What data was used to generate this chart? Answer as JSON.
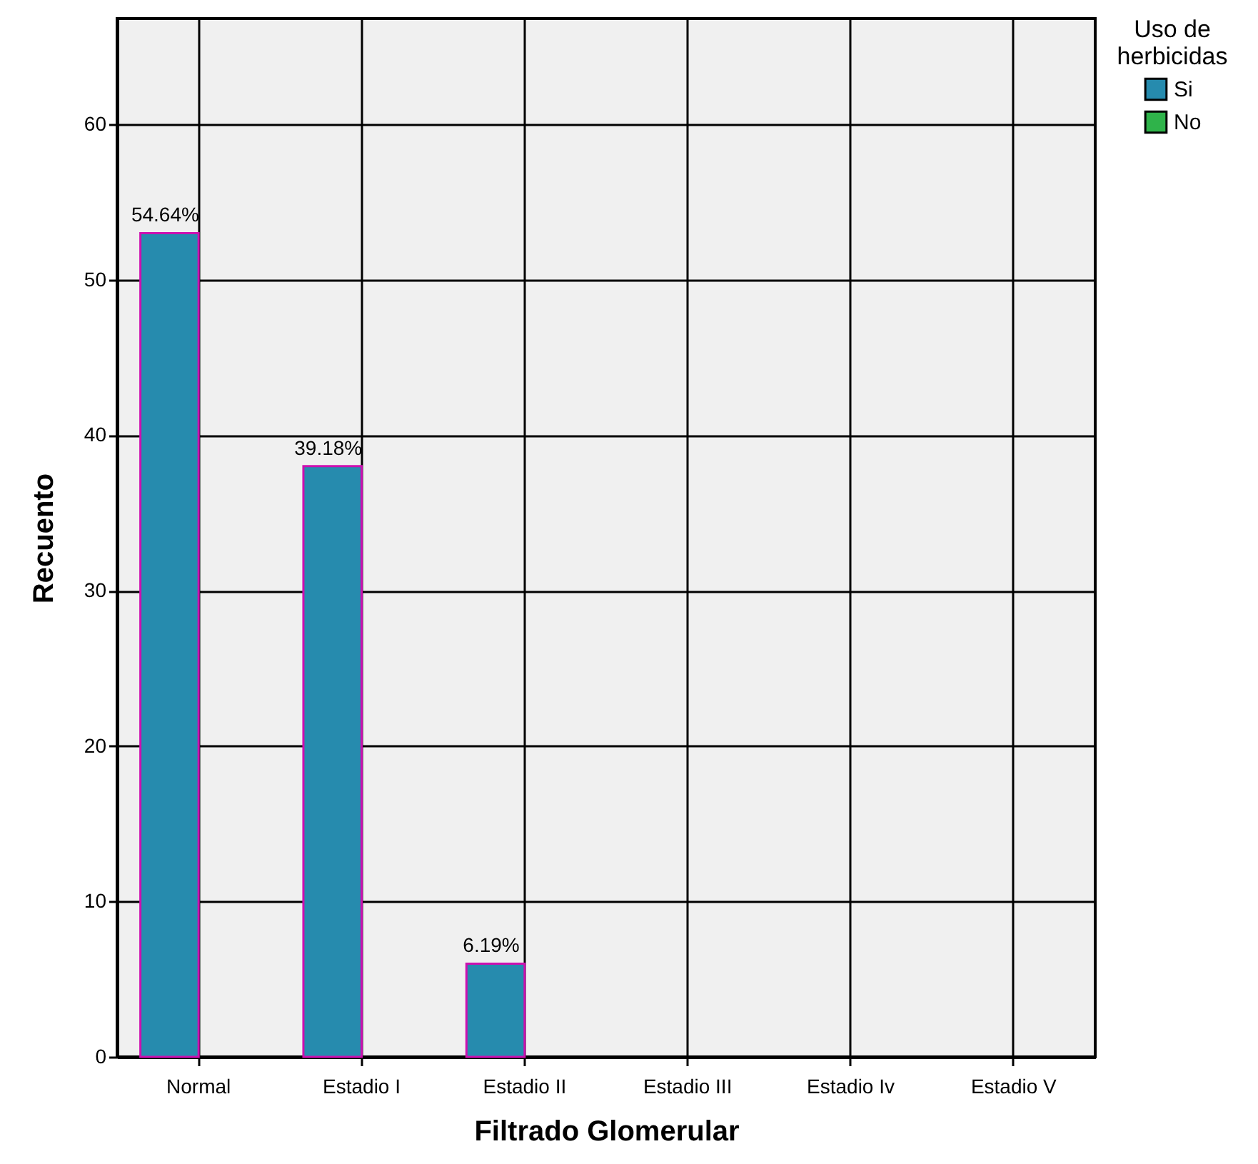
{
  "chart_data": {
    "type": "bar",
    "xlabel": "Filtrado Glomerular",
    "ylabel": "Recuento",
    "legend_title": "Uso de herbicidas",
    "categories": [
      "Normal",
      "Estadio I",
      "Estadio II",
      "Estadio III",
      "Estadio Iv",
      "Estadio V"
    ],
    "series": [
      {
        "name": "Si",
        "color": "#268bae",
        "values": [
          53,
          38,
          6,
          null,
          null,
          null
        ]
      },
      {
        "name": "No",
        "color": "#2fb34a",
        "values": [
          null,
          null,
          null,
          null,
          null,
          null
        ]
      }
    ],
    "annotations": [
      {
        "text": "54.64%",
        "x": "Normal",
        "y": 53
      },
      {
        "text": "39.18%",
        "x": "Estadio I",
        "y": 38
      },
      {
        "text": "6.19%",
        "x": "Estadio II",
        "y": 6
      }
    ],
    "ylim": [
      0,
      66.8
    ],
    "yticks": [
      0,
      10,
      20,
      30,
      40,
      50,
      60
    ],
    "grid": true,
    "legend": "top right"
  }
}
